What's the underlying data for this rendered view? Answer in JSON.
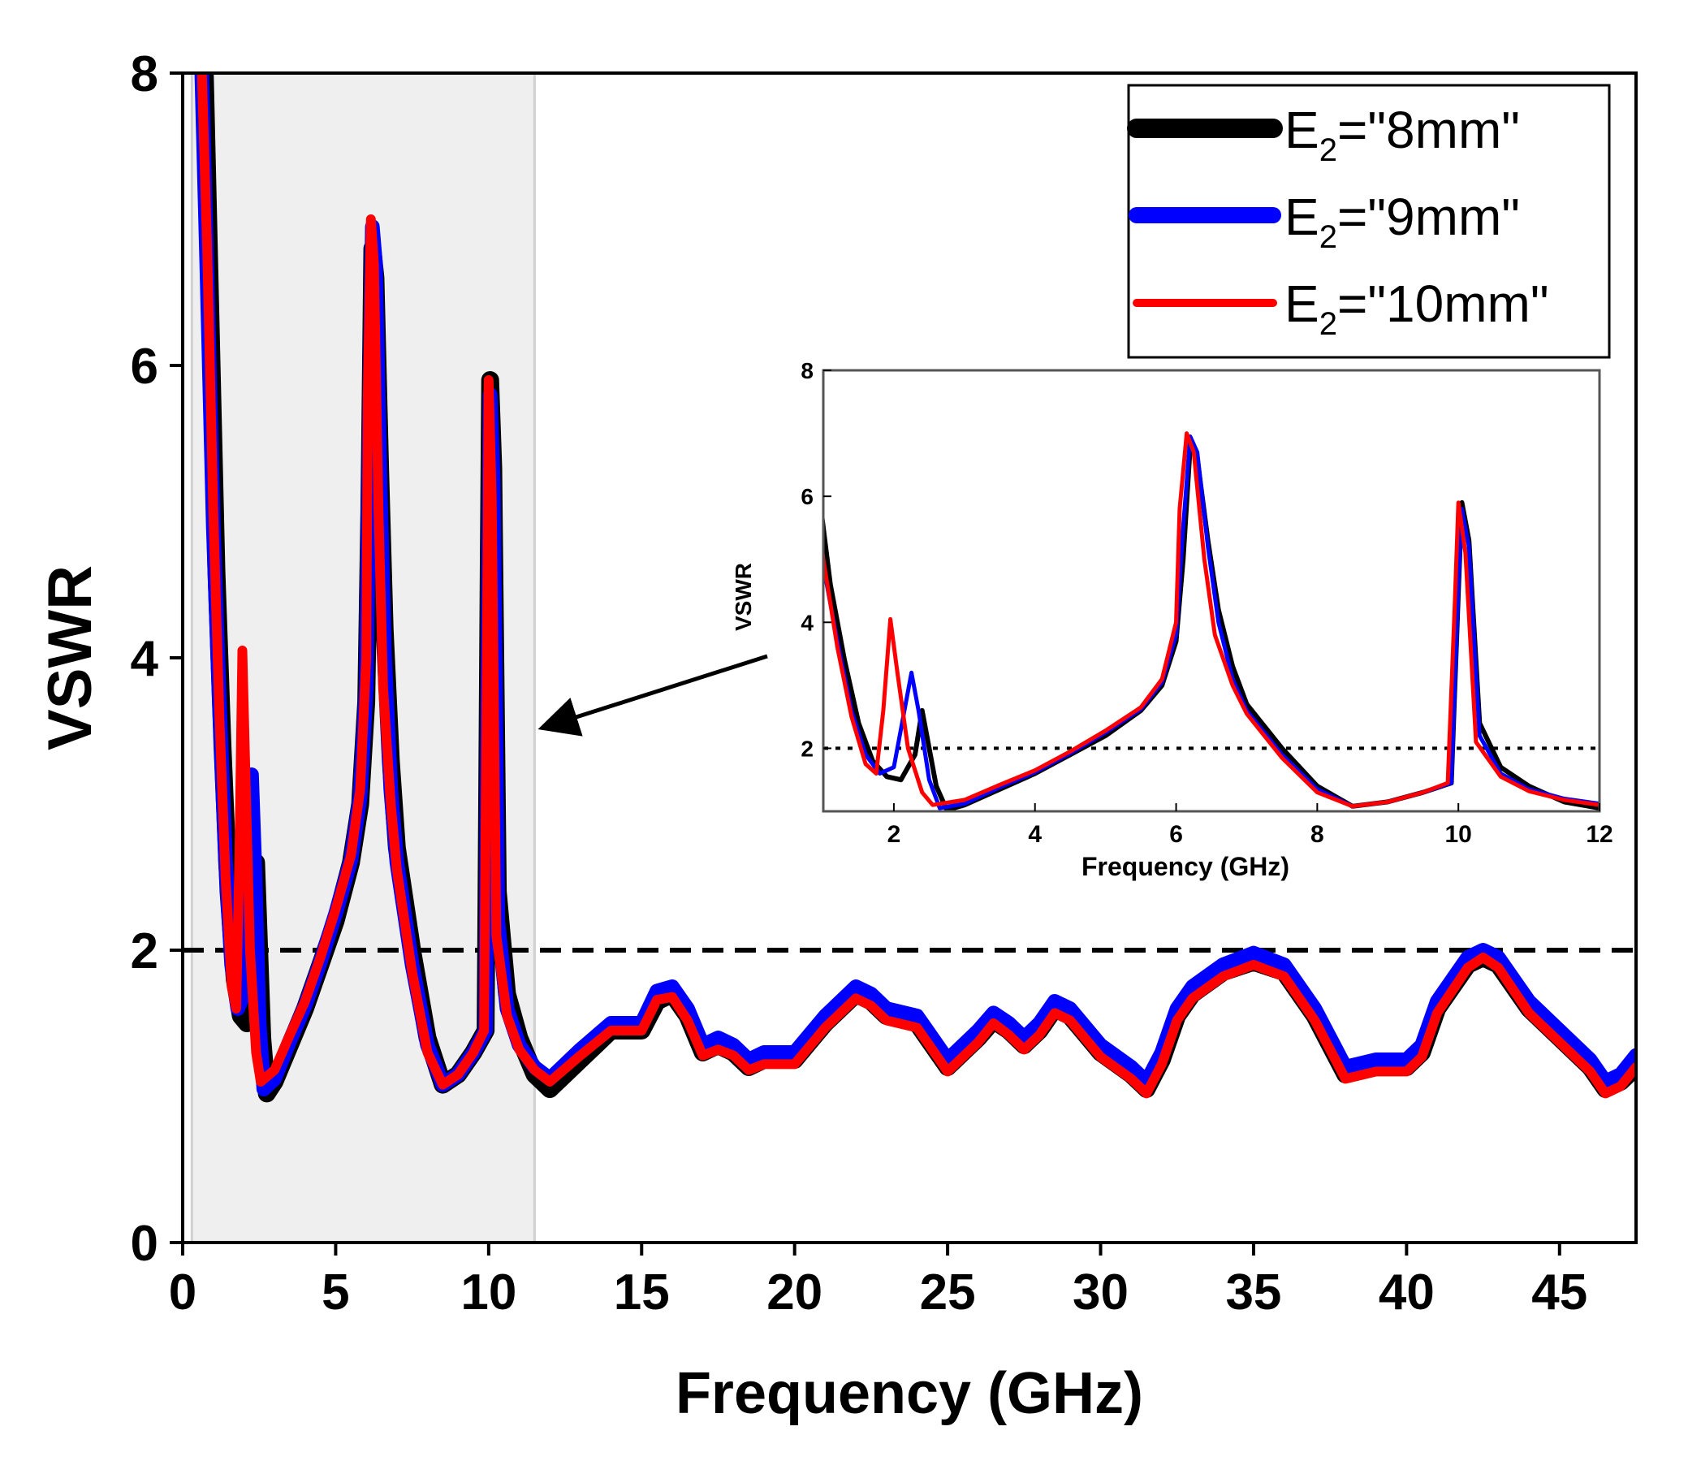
{
  "chart_data": {
    "type": "line",
    "xlabel": "Frequency (GHz)",
    "ylabel": "VSWR",
    "xlim": [
      0,
      47.5
    ],
    "ylim": [
      0,
      8
    ],
    "xticks": [
      0,
      5,
      10,
      15,
      20,
      25,
      30,
      35,
      40,
      45
    ],
    "yticks": [
      0,
      2,
      4,
      6,
      8
    ],
    "reference_line": {
      "y": 2,
      "style": "dashed"
    },
    "highlight_band": {
      "x": [
        0.3,
        11.5
      ]
    },
    "legend_position": "top-right",
    "series": [
      {
        "name": "E2=\"8mm\"",
        "label_main": "E",
        "label_sub": "2",
        "label_rest": "=\"8mm\"",
        "color": "#000000",
        "points": [
          [
            0.7,
            8.2
          ],
          [
            0.9,
            6.4
          ],
          [
            1.1,
            4.6
          ],
          [
            1.3,
            3.4
          ],
          [
            1.5,
            2.4
          ],
          [
            1.7,
            1.8
          ],
          [
            1.9,
            1.55
          ],
          [
            2.1,
            1.5
          ],
          [
            2.3,
            1.9
          ],
          [
            2.4,
            2.6
          ],
          [
            2.5,
            2.0
          ],
          [
            2.6,
            1.4
          ],
          [
            2.75,
            1.02
          ],
          [
            3,
            1.1
          ],
          [
            3.5,
            1.35
          ],
          [
            4,
            1.6
          ],
          [
            4.5,
            1.9
          ],
          [
            5,
            2.2
          ],
          [
            5.5,
            2.6
          ],
          [
            5.8,
            3.0
          ],
          [
            6.0,
            3.7
          ],
          [
            6.1,
            5.0
          ],
          [
            6.2,
            6.8
          ],
          [
            6.3,
            6.6
          ],
          [
            6.45,
            5.3
          ],
          [
            6.6,
            4.2
          ],
          [
            6.8,
            3.3
          ],
          [
            7.0,
            2.7
          ],
          [
            7.5,
            2.0
          ],
          [
            8,
            1.4
          ],
          [
            8.5,
            1.08
          ],
          [
            9,
            1.15
          ],
          [
            9.5,
            1.3
          ],
          [
            9.9,
            1.45
          ],
          [
            10.0,
            4.5
          ],
          [
            10.05,
            5.9
          ],
          [
            10.15,
            5.3
          ],
          [
            10.3,
            2.4
          ],
          [
            10.6,
            1.7
          ],
          [
            11,
            1.4
          ],
          [
            11.5,
            1.15
          ],
          [
            12,
            1.05
          ],
          [
            13,
            1.25
          ],
          [
            14,
            1.45
          ],
          [
            15,
            1.45
          ],
          [
            15.5,
            1.65
          ],
          [
            16,
            1.7
          ],
          [
            16.5,
            1.55
          ],
          [
            17,
            1.3
          ],
          [
            17.5,
            1.35
          ],
          [
            18,
            1.3
          ],
          [
            18.5,
            1.2
          ],
          [
            19,
            1.25
          ],
          [
            19.5,
            1.25
          ],
          [
            20,
            1.25
          ],
          [
            21,
            1.5
          ],
          [
            22,
            1.7
          ],
          [
            22.5,
            1.65
          ],
          [
            23,
            1.55
          ],
          [
            24,
            1.5
          ],
          [
            25,
            1.2
          ],
          [
            26,
            1.4
          ],
          [
            26.5,
            1.52
          ],
          [
            27,
            1.45
          ],
          [
            27.5,
            1.35
          ],
          [
            28,
            1.45
          ],
          [
            28.5,
            1.6
          ],
          [
            29,
            1.55
          ],
          [
            30,
            1.3
          ],
          [
            31,
            1.15
          ],
          [
            31.5,
            1.05
          ],
          [
            32,
            1.25
          ],
          [
            32.5,
            1.55
          ],
          [
            33,
            1.7
          ],
          [
            34,
            1.85
          ],
          [
            35,
            1.92
          ],
          [
            36,
            1.85
          ],
          [
            37,
            1.55
          ],
          [
            38,
            1.15
          ],
          [
            39,
            1.2
          ],
          [
            40,
            1.2
          ],
          [
            40.5,
            1.3
          ],
          [
            41,
            1.6
          ],
          [
            42,
            1.9
          ],
          [
            42.5,
            1.95
          ],
          [
            43,
            1.9
          ],
          [
            44,
            1.6
          ],
          [
            45,
            1.4
          ],
          [
            46,
            1.2
          ],
          [
            46.5,
            1.05
          ],
          [
            47,
            1.1
          ],
          [
            47.5,
            1.2
          ]
        ]
      },
      {
        "name": "E2=\"9mm\"",
        "label_main": "E",
        "label_sub": "2",
        "label_rest": "=\"9mm\"",
        "color": "#0000ff",
        "points": [
          [
            0.6,
            8.2
          ],
          [
            0.8,
            6.6
          ],
          [
            1.0,
            4.9
          ],
          [
            1.2,
            3.7
          ],
          [
            1.4,
            2.6
          ],
          [
            1.6,
            1.9
          ],
          [
            1.8,
            1.6
          ],
          [
            2.0,
            1.7
          ],
          [
            2.15,
            2.6
          ],
          [
            2.25,
            3.2
          ],
          [
            2.35,
            2.6
          ],
          [
            2.5,
            1.5
          ],
          [
            2.65,
            1.05
          ],
          [
            3,
            1.12
          ],
          [
            3.5,
            1.38
          ],
          [
            4,
            1.62
          ],
          [
            4.5,
            1.92
          ],
          [
            5,
            2.25
          ],
          [
            5.5,
            2.62
          ],
          [
            5.8,
            3.05
          ],
          [
            6.0,
            3.8
          ],
          [
            6.1,
            5.5
          ],
          [
            6.2,
            6.95
          ],
          [
            6.3,
            6.7
          ],
          [
            6.45,
            5.2
          ],
          [
            6.6,
            4.0
          ],
          [
            6.8,
            3.1
          ],
          [
            7.0,
            2.6
          ],
          [
            7.5,
            1.9
          ],
          [
            8,
            1.35
          ],
          [
            8.5,
            1.08
          ],
          [
            9,
            1.15
          ],
          [
            9.5,
            1.3
          ],
          [
            9.9,
            1.45
          ],
          [
            10.0,
            4.6
          ],
          [
            10.05,
            5.8
          ],
          [
            10.15,
            5.2
          ],
          [
            10.3,
            2.2
          ],
          [
            10.6,
            1.6
          ],
          [
            11,
            1.35
          ],
          [
            11.5,
            1.2
          ],
          [
            12,
            1.12
          ],
          [
            13,
            1.32
          ],
          [
            14,
            1.5
          ],
          [
            15,
            1.5
          ],
          [
            15.5,
            1.72
          ],
          [
            16,
            1.75
          ],
          [
            16.5,
            1.6
          ],
          [
            17,
            1.35
          ],
          [
            17.5,
            1.4
          ],
          [
            18,
            1.35
          ],
          [
            18.5,
            1.25
          ],
          [
            19,
            1.3
          ],
          [
            19.5,
            1.3
          ],
          [
            20,
            1.3
          ],
          [
            21,
            1.55
          ],
          [
            22,
            1.75
          ],
          [
            22.5,
            1.7
          ],
          [
            23,
            1.6
          ],
          [
            24,
            1.55
          ],
          [
            25,
            1.25
          ],
          [
            26,
            1.45
          ],
          [
            26.5,
            1.57
          ],
          [
            27,
            1.5
          ],
          [
            27.5,
            1.4
          ],
          [
            28,
            1.5
          ],
          [
            28.5,
            1.65
          ],
          [
            29,
            1.6
          ],
          [
            30,
            1.35
          ],
          [
            31,
            1.2
          ],
          [
            31.5,
            1.1
          ],
          [
            32,
            1.3
          ],
          [
            32.5,
            1.6
          ],
          [
            33,
            1.75
          ],
          [
            34,
            1.9
          ],
          [
            35,
            1.98
          ],
          [
            36,
            1.9
          ],
          [
            37,
            1.6
          ],
          [
            38,
            1.2
          ],
          [
            39,
            1.25
          ],
          [
            40,
            1.25
          ],
          [
            40.5,
            1.35
          ],
          [
            41,
            1.65
          ],
          [
            42,
            1.95
          ],
          [
            42.5,
            2.0
          ],
          [
            43,
            1.95
          ],
          [
            44,
            1.65
          ],
          [
            45,
            1.45
          ],
          [
            46,
            1.25
          ],
          [
            46.5,
            1.1
          ],
          [
            47,
            1.15
          ],
          [
            47.5,
            1.28
          ]
        ]
      },
      {
        "name": "E2=\"10mm\"",
        "label_main": "E",
        "label_sub": "2",
        "label_rest": "=\"10mm\"",
        "color": "#ff0000",
        "points": [
          [
            0.6,
            8.2
          ],
          [
            0.8,
            6.8
          ],
          [
            1.0,
            5.0
          ],
          [
            1.2,
            3.6
          ],
          [
            1.4,
            2.5
          ],
          [
            1.6,
            1.75
          ],
          [
            1.75,
            1.6
          ],
          [
            1.85,
            2.6
          ],
          [
            1.95,
            4.05
          ],
          [
            2.05,
            3.2
          ],
          [
            2.2,
            2.0
          ],
          [
            2.4,
            1.3
          ],
          [
            2.55,
            1.1
          ],
          [
            3,
            1.18
          ],
          [
            3.5,
            1.42
          ],
          [
            4,
            1.65
          ],
          [
            4.5,
            1.95
          ],
          [
            5,
            2.28
          ],
          [
            5.5,
            2.65
          ],
          [
            5.8,
            3.1
          ],
          [
            6.0,
            4.0
          ],
          [
            6.05,
            5.8
          ],
          [
            6.15,
            7.0
          ],
          [
            6.25,
            6.7
          ],
          [
            6.4,
            5.0
          ],
          [
            6.55,
            3.8
          ],
          [
            6.8,
            3.0
          ],
          [
            7.0,
            2.55
          ],
          [
            7.5,
            1.85
          ],
          [
            8,
            1.3
          ],
          [
            8.5,
            1.08
          ],
          [
            9,
            1.15
          ],
          [
            9.5,
            1.3
          ],
          [
            9.85,
            1.45
          ],
          [
            9.95,
            4.3
          ],
          [
            10.0,
            5.9
          ],
          [
            10.1,
            5.1
          ],
          [
            10.25,
            2.1
          ],
          [
            10.6,
            1.55
          ],
          [
            11,
            1.32
          ],
          [
            11.5,
            1.18
          ],
          [
            12,
            1.1
          ],
          [
            13,
            1.28
          ],
          [
            14,
            1.45
          ],
          [
            15,
            1.45
          ],
          [
            15.5,
            1.66
          ],
          [
            16,
            1.68
          ],
          [
            16.5,
            1.52
          ],
          [
            17,
            1.28
          ],
          [
            17.5,
            1.32
          ],
          [
            18,
            1.28
          ],
          [
            18.5,
            1.18
          ],
          [
            19,
            1.22
          ],
          [
            19.5,
            1.22
          ],
          [
            20,
            1.22
          ],
          [
            21,
            1.47
          ],
          [
            22,
            1.67
          ],
          [
            22.5,
            1.62
          ],
          [
            23,
            1.52
          ],
          [
            24,
            1.47
          ],
          [
            25,
            1.17
          ],
          [
            26,
            1.37
          ],
          [
            26.5,
            1.5
          ],
          [
            27,
            1.42
          ],
          [
            27.5,
            1.32
          ],
          [
            28,
            1.42
          ],
          [
            28.5,
            1.57
          ],
          [
            29,
            1.52
          ],
          [
            30,
            1.27
          ],
          [
            31,
            1.12
          ],
          [
            31.5,
            1.02
          ],
          [
            32,
            1.22
          ],
          [
            32.5,
            1.52
          ],
          [
            33,
            1.67
          ],
          [
            34,
            1.82
          ],
          [
            35,
            1.9
          ],
          [
            36,
            1.82
          ],
          [
            37,
            1.52
          ],
          [
            38,
            1.12
          ],
          [
            39,
            1.17
          ],
          [
            40,
            1.17
          ],
          [
            40.5,
            1.27
          ],
          [
            41,
            1.57
          ],
          [
            42,
            1.88
          ],
          [
            42.5,
            1.95
          ],
          [
            43,
            1.88
          ],
          [
            44,
            1.57
          ],
          [
            45,
            1.37
          ],
          [
            46,
            1.17
          ],
          [
            46.5,
            1.02
          ],
          [
            47,
            1.07
          ],
          [
            47.5,
            1.2
          ]
        ]
      }
    ],
    "inset": {
      "xlabel": "Frequency (GHz)",
      "ylabel": "VSWR",
      "xlim": [
        1,
        12
      ],
      "ylim": [
        1,
        8
      ],
      "xticks": [
        2,
        4,
        6,
        8,
        10,
        12
      ],
      "yticks": [
        2,
        4,
        6,
        8
      ],
      "reference_line": {
        "y": 2,
        "style": "dotted"
      }
    }
  }
}
